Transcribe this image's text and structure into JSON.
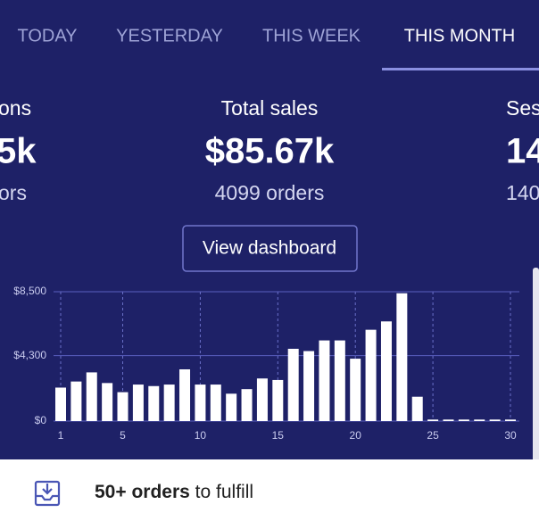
{
  "tabs": [
    "TODAY",
    "YESTERDAY",
    "THIS WEEK",
    "THIS MONTH"
  ],
  "stats": {
    "left": {
      "label": "ons",
      "value": "5k",
      "sub": "ors"
    },
    "center": {
      "label": "Total sales",
      "value": "$85.67k",
      "sub": "4099 orders"
    },
    "right": {
      "label": "Ses",
      "value": "14",
      "sub": "140"
    }
  },
  "button": "View dashboard",
  "chart_data": {
    "type": "bar",
    "color": "#ffffff",
    "categories": [
      "1",
      null,
      null,
      null,
      "5",
      null,
      null,
      null,
      null,
      "10",
      null,
      null,
      null,
      null,
      "15",
      null,
      null,
      null,
      null,
      "20",
      null,
      null,
      null,
      null,
      "25",
      null,
      null,
      null,
      null,
      "30"
    ],
    "values": [
      2200,
      2600,
      3200,
      2500,
      1900,
      2400,
      2300,
      2400,
      3400,
      2400,
      2400,
      1800,
      2100,
      2800,
      2700,
      4750,
      4600,
      5300,
      5300,
      4100,
      6000,
      6550,
      8400,
      1600,
      100,
      100,
      100,
      100,
      100,
      100
    ],
    "ylim": [
      0,
      8500
    ],
    "yticks": [
      {
        "value": 0,
        "label": "$0"
      },
      {
        "value": 4300,
        "label": "$4,300"
      },
      {
        "value": 8500,
        "label": "$8,500"
      }
    ],
    "grid": true
  },
  "footer": {
    "bold": "50+ orders",
    "rest": "to fulfill"
  }
}
